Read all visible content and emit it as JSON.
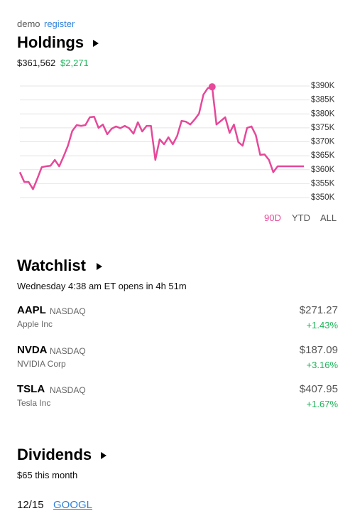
{
  "header": {
    "user": "demo",
    "link": "register"
  },
  "holdings": {
    "title": "Holdings",
    "total": "$361,562",
    "change": "$2,271",
    "chart": {
      "type": "line",
      "color": "#e6489a",
      "values": [
        359.1,
        355.6,
        355.6,
        353.0,
        356.8,
        360.9,
        361.2,
        361.4,
        363.5,
        361.2,
        364.7,
        368.6,
        373.9,
        376.0,
        375.7,
        376.0,
        378.8,
        379.0,
        375.0,
        376.2,
        372.7,
        374.7,
        375.5,
        374.9,
        375.7,
        374.9,
        372.9,
        377.0,
        373.7,
        375.7,
        375.7,
        363.5,
        370.9,
        369.1,
        371.6,
        369.1,
        372.1,
        377.5,
        377.2,
        376.2,
        378.0,
        380.1,
        386.9,
        389.2,
        389.7,
        376.2,
        377.5,
        378.8,
        373.2,
        376.2,
        369.9,
        368.6,
        375.0,
        375.5,
        372.4,
        365.3,
        365.5,
        363.5,
        359.1,
        361.2,
        361.2,
        361.2,
        361.2,
        361.2,
        361.2,
        361.2
      ],
      "ylim": [
        350,
        390
      ],
      "yticks": [
        {
          "value": 390,
          "label": "$390K"
        },
        {
          "value": 385,
          "label": "$385K"
        },
        {
          "value": 380,
          "label": "$380K"
        },
        {
          "value": 375,
          "label": "$375K"
        },
        {
          "value": 370,
          "label": "$370K"
        },
        {
          "value": 365,
          "label": "$365K"
        },
        {
          "value": 360,
          "label": "$360K"
        },
        {
          "value": 355,
          "label": "$355K"
        },
        {
          "value": 350,
          "label": "$350K"
        }
      ],
      "grid": true
    },
    "ranges": [
      "90D",
      "YTD",
      "ALL"
    ]
  },
  "watchlist": {
    "title": "Watchlist",
    "status": "Wednesday 4:38 am ET opens in 4h 51m",
    "items": [
      {
        "symbol": "AAPL",
        "exchange": "NASDAQ",
        "name": "Apple Inc",
        "price": "$271.27",
        "change": "+1.43%"
      },
      {
        "symbol": "NVDA",
        "exchange": "NASDAQ",
        "name": "NVIDIA Corp",
        "price": "$187.09",
        "change": "+3.16%"
      },
      {
        "symbol": "TSLA",
        "exchange": "NASDAQ",
        "name": "Tesla Inc",
        "price": "$407.95",
        "change": "+1.67%"
      }
    ]
  },
  "dividends": {
    "title": "Dividends",
    "summary": "$65 this month",
    "items": [
      {
        "date": "12/15",
        "symbol": "GOOGL"
      }
    ]
  }
}
